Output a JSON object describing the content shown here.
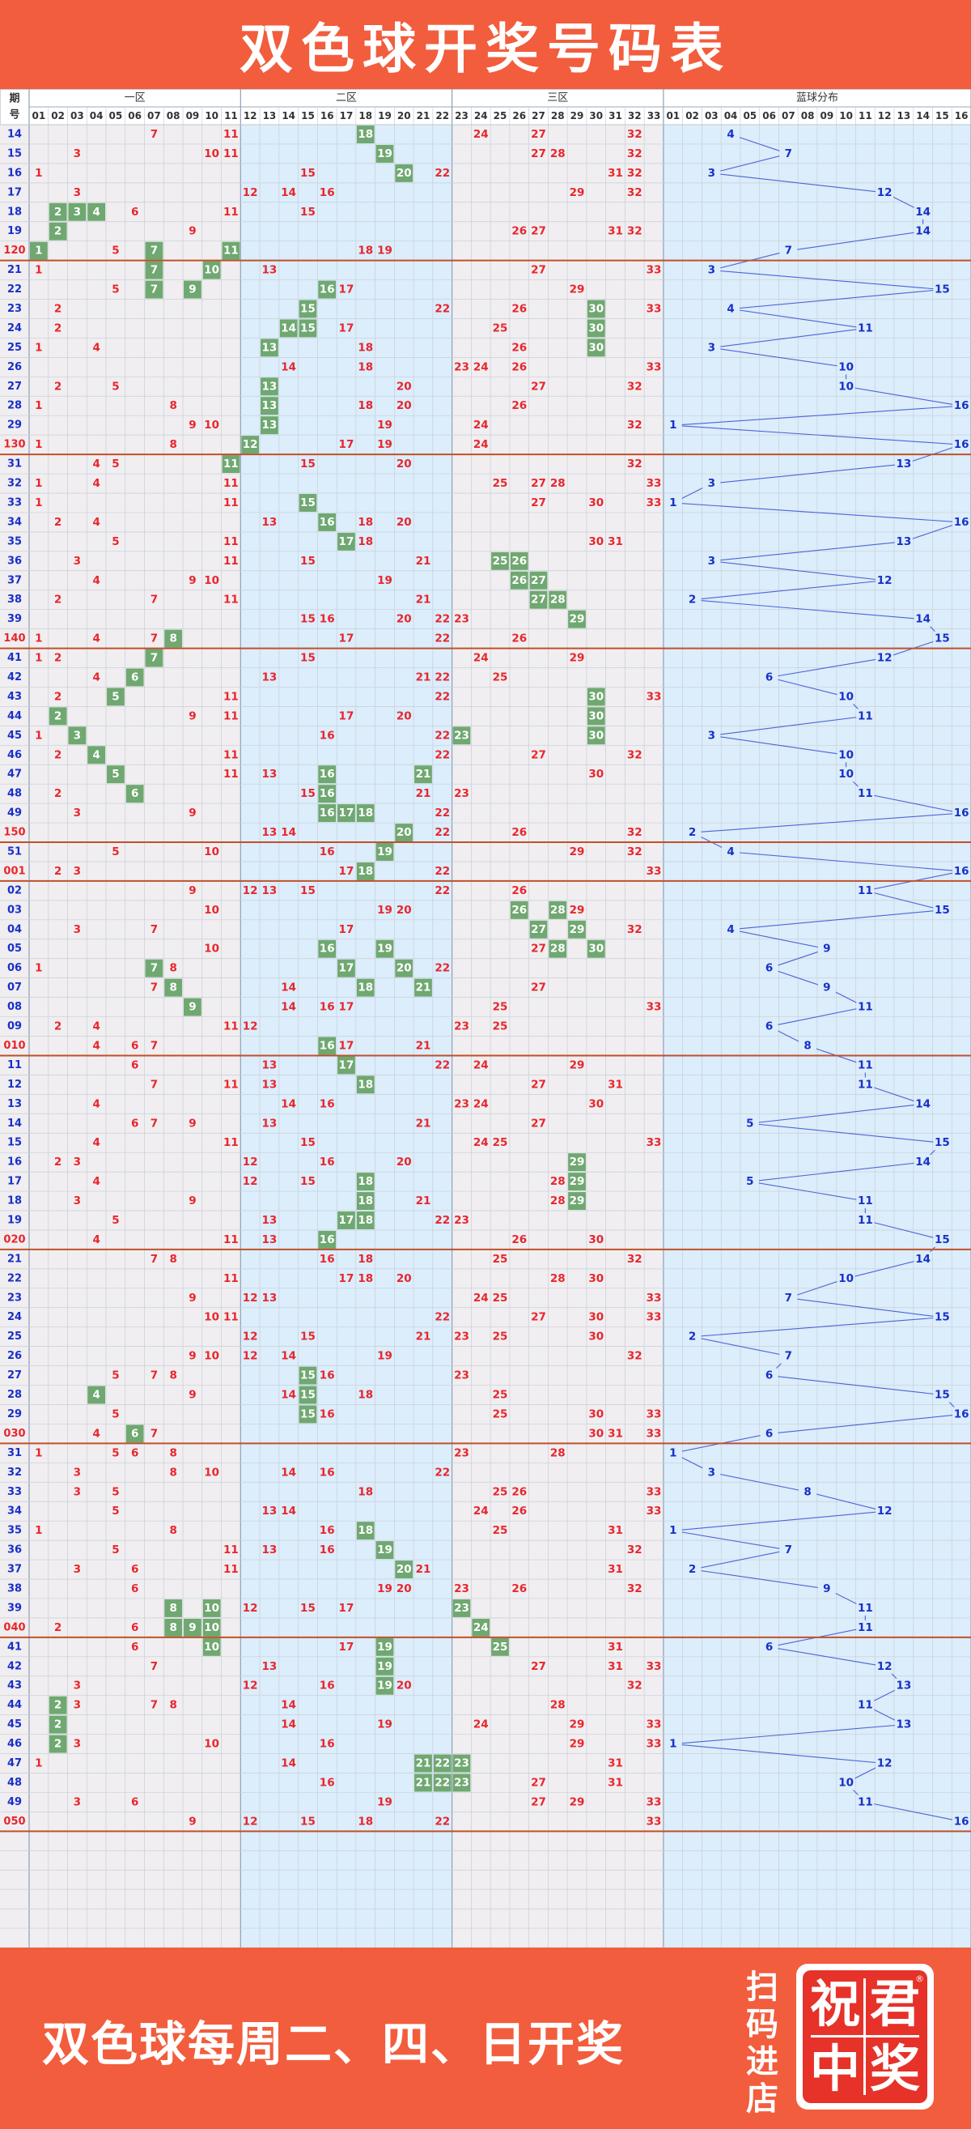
{
  "title": "双色球开奖号码表",
  "footer": {
    "text": "双色球每周二、四、日开奖",
    "scan": "扫码进店",
    "logo_chars": [
      "祝",
      "君",
      "中",
      "奖"
    ],
    "reg": "®"
  },
  "headers": {
    "period": "期号",
    "zone1": "一区",
    "zone2": "二区",
    "zone3": "三区",
    "blue": "蓝球分布"
  },
  "colors": {
    "red_number": "#e8262d",
    "blue_number": "#1830c8",
    "highlight": "#6fa870",
    "red_bg": "#f0eef0",
    "blue_bg": "#dcedfb",
    "section_line": "#c0502a"
  },
  "red_columns": [
    "01",
    "02",
    "03",
    "04",
    "05",
    "06",
    "07",
    "08",
    "09",
    "10",
    "11",
    "12",
    "13",
    "14",
    "15",
    "16",
    "17",
    "18",
    "19",
    "20",
    "21",
    "22",
    "23",
    "24",
    "25",
    "26",
    "27",
    "28",
    "29",
    "30",
    "31",
    "32",
    "33"
  ],
  "blue_columns": [
    "01",
    "02",
    "03",
    "04",
    "05",
    "06",
    "07",
    "08",
    "09",
    "10",
    "11",
    "12",
    "13",
    "14",
    "15",
    "16"
  ],
  "rows": [
    {
      "p": "14",
      "r": [
        7,
        11,
        18,
        24,
        27,
        32
      ],
      "h": [
        18
      ],
      "b": 4
    },
    {
      "p": "15",
      "r": [
        3,
        10,
        11,
        19,
        27,
        28,
        32
      ],
      "h": [
        19
      ],
      "b": 7
    },
    {
      "p": "16",
      "r": [
        1,
        15,
        20,
        22,
        31,
        32
      ],
      "h": [
        20
      ],
      "b": 3
    },
    {
      "p": "17",
      "r": [
        3,
        12,
        14,
        16,
        29,
        32
      ],
      "h": [],
      "b": 12
    },
    {
      "p": "18",
      "r": [
        2,
        3,
        4,
        6,
        11,
        15
      ],
      "h": [
        2,
        3,
        4
      ],
      "b": 14
    },
    {
      "p": "19",
      "r": [
        2,
        9,
        26,
        27,
        31,
        32
      ],
      "h": [
        2
      ],
      "b": 14
    },
    {
      "p": "120",
      "r": [
        1,
        5,
        7,
        11,
        18,
        19
      ],
      "h": [
        1,
        7,
        11
      ],
      "b": 7
    },
    {
      "p": "21",
      "r": [
        1,
        7,
        10,
        13,
        27,
        33
      ],
      "h": [
        7,
        10
      ],
      "b": 3
    },
    {
      "p": "22",
      "r": [
        5,
        7,
        9,
        16,
        17,
        29
      ],
      "h": [
        7,
        9,
        16
      ],
      "b": 15
    },
    {
      "p": "23",
      "r": [
        2,
        15,
        22,
        26,
        30,
        33
      ],
      "h": [
        15,
        30
      ],
      "b": 4
    },
    {
      "p": "24",
      "r": [
        2,
        14,
        15,
        17,
        25,
        30
      ],
      "h": [
        14,
        15,
        30
      ],
      "b": 11
    },
    {
      "p": "25",
      "r": [
        1,
        4,
        13,
        18,
        26,
        30
      ],
      "h": [
        13,
        30
      ],
      "b": 3
    },
    {
      "p": "26",
      "r": [
        14,
        18,
        23,
        24,
        26,
        33
      ],
      "h": [],
      "b": 10
    },
    {
      "p": "27",
      "r": [
        2,
        5,
        13,
        20,
        27,
        32
      ],
      "h": [
        13
      ],
      "b": 10
    },
    {
      "p": "28",
      "r": [
        1,
        8,
        13,
        18,
        20,
        26
      ],
      "h": [
        13
      ],
      "b": 16
    },
    {
      "p": "29",
      "r": [
        9,
        10,
        13,
        19,
        24,
        32
      ],
      "h": [
        13
      ],
      "b": 1
    },
    {
      "p": "130",
      "r": [
        1,
        8,
        12,
        17,
        19,
        24
      ],
      "h": [
        12
      ],
      "b": 16
    },
    {
      "p": "31",
      "r": [
        4,
        5,
        11,
        15,
        20,
        32
      ],
      "h": [
        11
      ],
      "b": 13
    },
    {
      "p": "32",
      "r": [
        1,
        4,
        11,
        25,
        27,
        28,
        33
      ],
      "h": [],
      "b": 3
    },
    {
      "p": "33",
      "r": [
        1,
        11,
        15,
        27,
        30,
        33
      ],
      "h": [
        15
      ],
      "b": 1
    },
    {
      "p": "34",
      "r": [
        2,
        4,
        13,
        16,
        18,
        20
      ],
      "h": [
        16
      ],
      "b": 16
    },
    {
      "p": "35",
      "r": [
        5,
        11,
        17,
        18,
        30,
        31
      ],
      "h": [
        17
      ],
      "b": 13
    },
    {
      "p": "36",
      "r": [
        3,
        11,
        15,
        21,
        25,
        26
      ],
      "h": [
        25,
        26
      ],
      "b": 3
    },
    {
      "p": "37",
      "r": [
        4,
        9,
        10,
        19,
        26,
        27
      ],
      "h": [
        26,
        27
      ],
      "b": 12
    },
    {
      "p": "38",
      "r": [
        2,
        7,
        11,
        21,
        27,
        28
      ],
      "h": [
        27,
        28
      ],
      "b": 2
    },
    {
      "p": "39",
      "r": [
        15,
        16,
        20,
        22,
        23,
        29
      ],
      "h": [
        29
      ],
      "b": 14
    },
    {
      "p": "140",
      "r": [
        1,
        4,
        7,
        8,
        17,
        22,
        26
      ],
      "h": [
        8
      ],
      "b": 15
    },
    {
      "p": "41",
      "r": [
        1,
        2,
        7,
        15,
        24,
        29
      ],
      "h": [
        7
      ],
      "b": 12
    },
    {
      "p": "42",
      "r": [
        4,
        6,
        13,
        21,
        22,
        25
      ],
      "h": [
        6
      ],
      "b": 6
    },
    {
      "p": "43",
      "r": [
        2,
        5,
        11,
        22,
        30,
        33
      ],
      "h": [
        5,
        30
      ],
      "b": 10
    },
    {
      "p": "44",
      "r": [
        2,
        9,
        11,
        17,
        20,
        30
      ],
      "h": [
        2,
        30
      ],
      "b": 11
    },
    {
      "p": "45",
      "r": [
        1,
        3,
        16,
        22,
        23,
        30
      ],
      "h": [
        3,
        23,
        30
      ],
      "b": 3
    },
    {
      "p": "46",
      "r": [
        2,
        4,
        11,
        22,
        27,
        32
      ],
      "h": [
        4
      ],
      "b": 10
    },
    {
      "p": "47",
      "r": [
        5,
        11,
        13,
        16,
        21,
        30
      ],
      "h": [
        5,
        16,
        21
      ],
      "b": 10
    },
    {
      "p": "48",
      "r": [
        2,
        6,
        15,
        16,
        21,
        23
      ],
      "h": [
        6,
        16
      ],
      "b": 11
    },
    {
      "p": "49",
      "r": [
        3,
        9,
        16,
        17,
        18,
        22
      ],
      "h": [
        16,
        17,
        18
      ],
      "b": 16
    },
    {
      "p": "150",
      "r": [
        13,
        14,
        20,
        22,
        26,
        32
      ],
      "h": [
        20
      ],
      "b": 2
    },
    {
      "p": "51",
      "r": [
        5,
        10,
        16,
        19,
        29,
        32
      ],
      "h": [
        19
      ],
      "b": 4
    },
    {
      "p": "001",
      "r": [
        2,
        3,
        17,
        18,
        22,
        33
      ],
      "h": [
        18
      ],
      "b": 16
    },
    {
      "p": "02",
      "r": [
        9,
        12,
        13,
        15,
        22,
        26
      ],
      "h": [],
      "b": 11
    },
    {
      "p": "03",
      "r": [
        10,
        19,
        20,
        26,
        28,
        29
      ],
      "h": [
        26,
        28
      ],
      "b": 15
    },
    {
      "p": "04",
      "r": [
        3,
        7,
        17,
        27,
        29,
        32
      ],
      "h": [
        27,
        29
      ],
      "b": 4
    },
    {
      "p": "05",
      "r": [
        10,
        16,
        19,
        27,
        28,
        30
      ],
      "h": [
        16,
        19,
        28,
        30
      ],
      "b": 9
    },
    {
      "p": "06",
      "r": [
        1,
        7,
        8,
        17,
        20,
        22
      ],
      "h": [
        7,
        17,
        20
      ],
      "b": 6
    },
    {
      "p": "07",
      "r": [
        7,
        8,
        14,
        18,
        21,
        27
      ],
      "h": [
        8,
        18,
        21
      ],
      "b": 9
    },
    {
      "p": "08",
      "r": [
        9,
        14,
        16,
        17,
        25,
        33
      ],
      "h": [
        9
      ],
      "b": 11
    },
    {
      "p": "09",
      "r": [
        2,
        4,
        11,
        12,
        23,
        25
      ],
      "h": [],
      "b": 6
    },
    {
      "p": "010",
      "r": [
        4,
        6,
        7,
        16,
        17,
        21
      ],
      "h": [
        16
      ],
      "b": 8
    },
    {
      "p": "11",
      "r": [
        6,
        13,
        17,
        22,
        24,
        29
      ],
      "h": [
        17
      ],
      "b": 11
    },
    {
      "p": "12",
      "r": [
        7,
        11,
        13,
        18,
        27,
        31
      ],
      "h": [
        18
      ],
      "b": 11
    },
    {
      "p": "13",
      "r": [
        4,
        14,
        16,
        23,
        24,
        30
      ],
      "h": [],
      "b": 14
    },
    {
      "p": "14",
      "r": [
        6,
        7,
        9,
        13,
        21,
        27
      ],
      "h": [],
      "b": 5
    },
    {
      "p": "15",
      "r": [
        4,
        11,
        15,
        24,
        25,
        33
      ],
      "h": [],
      "b": 15
    },
    {
      "p": "16",
      "r": [
        2,
        3,
        12,
        16,
        20,
        29
      ],
      "h": [
        29
      ],
      "b": 14
    },
    {
      "p": "17",
      "r": [
        4,
        12,
        15,
        18,
        28,
        29
      ],
      "h": [
        18,
        29
      ],
      "b": 5
    },
    {
      "p": "18",
      "r": [
        3,
        9,
        18,
        21,
        28,
        29
      ],
      "h": [
        18,
        29
      ],
      "b": 11
    },
    {
      "p": "19",
      "r": [
        5,
        13,
        17,
        18,
        22,
        23
      ],
      "h": [
        17,
        18
      ],
      "b": 11
    },
    {
      "p": "020",
      "r": [
        4,
        11,
        13,
        16,
        26,
        30
      ],
      "h": [
        16
      ],
      "b": 15
    },
    {
      "p": "21",
      "r": [
        7,
        8,
        16,
        18,
        25,
        32
      ],
      "h": [],
      "b": 14
    },
    {
      "p": "22",
      "r": [
        11,
        17,
        18,
        20,
        28,
        30
      ],
      "h": [],
      "b": 10
    },
    {
      "p": "23",
      "r": [
        9,
        12,
        13,
        24,
        25,
        33
      ],
      "h": [],
      "b": 7
    },
    {
      "p": "24",
      "r": [
        10,
        11,
        22,
        27,
        30,
        33
      ],
      "h": [],
      "b": 15
    },
    {
      "p": "25",
      "r": [
        12,
        15,
        21,
        23,
        25,
        30
      ],
      "h": [],
      "b": 2
    },
    {
      "p": "26",
      "r": [
        9,
        10,
        12,
        14,
        19,
        32
      ],
      "h": [],
      "b": 7
    },
    {
      "p": "27",
      "r": [
        5,
        7,
        8,
        15,
        16,
        23
      ],
      "h": [
        15
      ],
      "b": 6
    },
    {
      "p": "28",
      "r": [
        4,
        9,
        14,
        15,
        18,
        25
      ],
      "h": [
        4,
        15
      ],
      "b": 15
    },
    {
      "p": "29",
      "r": [
        5,
        15,
        16,
        25,
        30,
        33
      ],
      "h": [
        15
      ],
      "b": 16
    },
    {
      "p": "030",
      "r": [
        4,
        6,
        7,
        30,
        31,
        33
      ],
      "h": [
        6
      ],
      "b": 6
    },
    {
      "p": "31",
      "r": [
        1,
        5,
        6,
        8,
        23,
        28
      ],
      "h": [],
      "b": 1
    },
    {
      "p": "32",
      "r": [
        3,
        8,
        10,
        14,
        16,
        22
      ],
      "h": [],
      "b": 3
    },
    {
      "p": "33",
      "r": [
        3,
        5,
        18,
        25,
        26,
        33
      ],
      "h": [],
      "b": 8
    },
    {
      "p": "34",
      "r": [
        5,
        13,
        14,
        24,
        26,
        33
      ],
      "h": [],
      "b": 12
    },
    {
      "p": "35",
      "r": [
        1,
        8,
        16,
        18,
        25,
        31
      ],
      "h": [
        18
      ],
      "b": 1
    },
    {
      "p": "36",
      "r": [
        5,
        11,
        13,
        16,
        19,
        32
      ],
      "h": [
        19
      ],
      "b": 7
    },
    {
      "p": "37",
      "r": [
        3,
        6,
        11,
        20,
        21,
        31
      ],
      "h": [
        20
      ],
      "b": 2
    },
    {
      "p": "38",
      "r": [
        6,
        19,
        20,
        23,
        26,
        32
      ],
      "h": [],
      "b": 9
    },
    {
      "p": "39",
      "r": [
        8,
        10,
        12,
        15,
        17,
        23
      ],
      "h": [
        8,
        10,
        23
      ],
      "b": 11
    },
    {
      "p": "040",
      "r": [
        2,
        6,
        8,
        9,
        10,
        24
      ],
      "h": [
        8,
        9,
        10,
        24
      ],
      "b": 11
    },
    {
      "p": "41",
      "r": [
        6,
        10,
        17,
        19,
        25,
        31
      ],
      "h": [
        10,
        19,
        25
      ],
      "b": 6
    },
    {
      "p": "42",
      "r": [
        7,
        13,
        19,
        27,
        31,
        33
      ],
      "h": [
        19
      ],
      "b": 12
    },
    {
      "p": "43",
      "r": [
        3,
        12,
        16,
        19,
        20,
        32
      ],
      "h": [
        19
      ],
      "b": 13
    },
    {
      "p": "44",
      "r": [
        2,
        3,
        7,
        8,
        14,
        28
      ],
      "h": [
        2
      ],
      "b": 11
    },
    {
      "p": "45",
      "r": [
        2,
        14,
        19,
        24,
        29,
        33
      ],
      "h": [
        2
      ],
      "b": 13
    },
    {
      "p": "46",
      "r": [
        2,
        3,
        10,
        16,
        29,
        33
      ],
      "h": [
        2
      ],
      "b": 1
    },
    {
      "p": "47",
      "r": [
        1,
        14,
        21,
        22,
        23,
        31
      ],
      "h": [
        21,
        22,
        23
      ],
      "b": 12
    },
    {
      "p": "48",
      "r": [
        16,
        21,
        22,
        23,
        27,
        31
      ],
      "h": [
        21,
        22,
        23
      ],
      "b": 10
    },
    {
      "p": "49",
      "r": [
        3,
        6,
        19,
        27,
        29,
        33
      ],
      "h": [],
      "b": 11
    },
    {
      "p": "050",
      "r": [
        9,
        12,
        15,
        18,
        22,
        33
      ],
      "h": [],
      "b": 16
    }
  ]
}
